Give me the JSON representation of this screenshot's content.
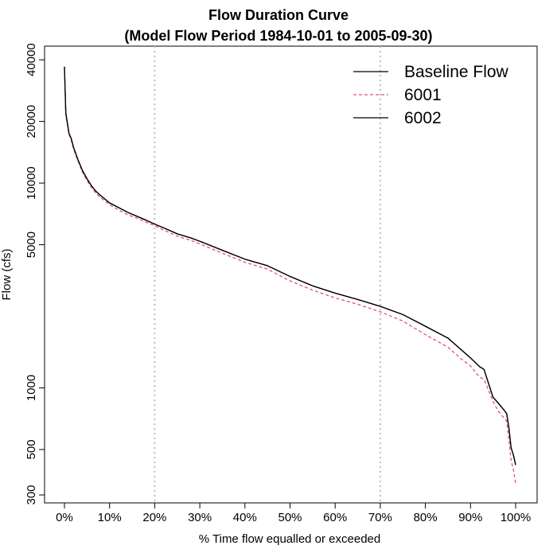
{
  "chart_data": {
    "type": "line",
    "title": "Flow Duration Curve",
    "subtitle": "(Model Flow Period 1984-10-01 to 2005-09-30)",
    "xlabel": "% Time flow equalled or exceeded",
    "ylabel": "Flow (cfs)",
    "x_scale": "linear",
    "y_scale": "log",
    "xlim": [
      0,
      100
    ],
    "ylim": [
      300,
      45000
    ],
    "x_ticks": [
      0,
      10,
      20,
      30,
      40,
      50,
      60,
      70,
      80,
      90,
      100
    ],
    "x_tick_labels": [
      "0%",
      "10%",
      "20%",
      "30%",
      "40%",
      "50%",
      "60%",
      "70%",
      "80%",
      "90%",
      "100%"
    ],
    "y_ticks": [
      300,
      500,
      1000,
      5000,
      10000,
      20000,
      40000
    ],
    "y_tick_labels": [
      "300",
      "500",
      "1000",
      "5000",
      "10000",
      "20000",
      "40000"
    ],
    "reference_lines_x": [
      20,
      70
    ],
    "grid": false,
    "legend_position": "top-right",
    "series": [
      {
        "name": "Baseline Flow",
        "color": "#000000",
        "dash": "solid",
        "x": [
          0,
          0.3,
          1,
          1.5,
          2,
          3,
          4,
          5,
          6,
          7,
          8,
          10,
          12,
          14,
          16,
          18,
          20,
          22,
          25,
          28,
          30,
          35,
          40,
          45,
          50,
          55,
          60,
          65,
          70,
          75,
          80,
          85,
          88,
          90,
          92,
          93,
          94,
          95,
          96,
          97,
          98,
          98.5,
          99,
          99.5,
          100
        ],
        "values": [
          37000,
          22000,
          17500,
          16500,
          15000,
          13000,
          11500,
          10500,
          9700,
          9100,
          8700,
          8000,
          7600,
          7200,
          6900,
          6600,
          6300,
          6050,
          5650,
          5400,
          5200,
          4700,
          4250,
          3950,
          3500,
          3150,
          2900,
          2700,
          2500,
          2280,
          2000,
          1750,
          1530,
          1400,
          1270,
          1230,
          1050,
          900,
          850,
          800,
          750,
          640,
          510,
          470,
          420
        ]
      },
      {
        "name": "6001",
        "color": "#df536b",
        "dash": "dashed",
        "x": [
          0,
          0.3,
          1,
          1.5,
          2,
          3,
          4,
          5,
          6,
          7,
          8,
          10,
          12,
          14,
          16,
          18,
          20,
          22,
          25,
          28,
          30,
          35,
          40,
          45,
          50,
          55,
          60,
          65,
          70,
          75,
          80,
          85,
          88,
          90,
          92,
          93,
          94,
          95,
          96,
          97,
          98,
          98.5,
          99,
          99.5,
          100
        ],
        "values": [
          36500,
          21500,
          17300,
          16200,
          14700,
          12800,
          11300,
          10300,
          9500,
          8900,
          8500,
          7850,
          7400,
          7000,
          6750,
          6450,
          6200,
          5900,
          5500,
          5250,
          5050,
          4550,
          4100,
          3800,
          3330,
          3000,
          2750,
          2560,
          2350,
          2120,
          1820,
          1580,
          1380,
          1280,
          1130,
          1100,
          970,
          860,
          780,
          730,
          690,
          560,
          440,
          400,
          340
        ]
      },
      {
        "name": "6002",
        "color": "#000000",
        "dash": "solid",
        "x": [
          0,
          0.3,
          1,
          1.5,
          2,
          3,
          4,
          5,
          6,
          7,
          8,
          10,
          12,
          14,
          16,
          18,
          20,
          22,
          25,
          28,
          30,
          35,
          40,
          45,
          50,
          55,
          60,
          65,
          70,
          75,
          80,
          85,
          88,
          90,
          92,
          93,
          94,
          95,
          96,
          97,
          98,
          98.5,
          99,
          99.5,
          100
        ],
        "values": [
          37000,
          22000,
          17500,
          16500,
          15000,
          13000,
          11500,
          10500,
          9700,
          9100,
          8700,
          8000,
          7600,
          7200,
          6900,
          6600,
          6300,
          6050,
          5650,
          5400,
          5200,
          4700,
          4250,
          3950,
          3500,
          3150,
          2900,
          2700,
          2500,
          2280,
          2000,
          1750,
          1530,
          1400,
          1270,
          1230,
          1050,
          900,
          850,
          800,
          750,
          640,
          510,
          470,
          420
        ]
      }
    ]
  }
}
